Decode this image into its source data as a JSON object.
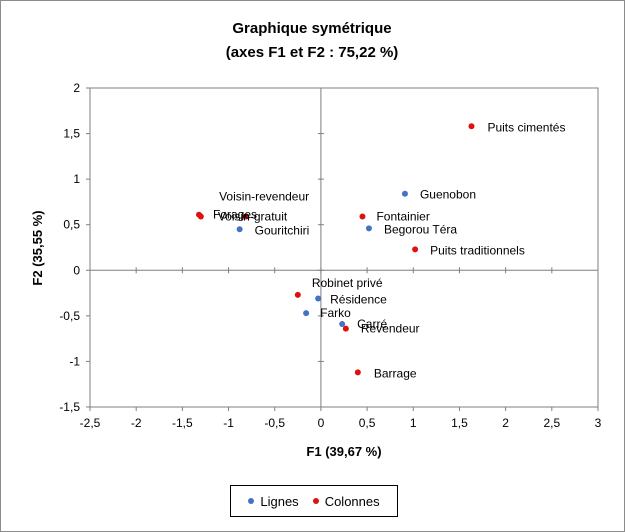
{
  "chart_data": {
    "type": "scatter",
    "title": "Graphique symétrique",
    "subtitle": "(axes F1 et F2 : 75,22 %)",
    "xlabel": "F1 (39,67 %)",
    "ylabel": "F2 (35,55 %)",
    "xlim": [
      -2.5,
      3
    ],
    "ylim": [
      -1.5,
      2
    ],
    "xticks": [
      -2.5,
      -2,
      -1.5,
      -1,
      -0.5,
      0,
      0.5,
      1,
      1.5,
      2,
      2.5,
      3
    ],
    "yticks": [
      -1.5,
      -1,
      -0.5,
      0,
      0.5,
      1,
      1.5,
      2
    ],
    "xtick_labels": [
      "-2,5",
      "-2",
      "-1,5",
      "-1",
      "-0,5",
      "0",
      "0,5",
      "1",
      "1,5",
      "2",
      "2,5",
      "3"
    ],
    "ytick_labels": [
      "-1,5",
      "-1",
      "-0,5",
      "0",
      "0,5",
      "1",
      "1,5",
      "2"
    ],
    "grid": false,
    "legend_position": "bottom",
    "series": [
      {
        "name": "Lignes",
        "color": "#4472c4",
        "points": [
          {
            "label": "Guenobon",
            "x": 0.91,
            "y": 0.84
          },
          {
            "label": "Begorou Téra",
            "x": 0.52,
            "y": 0.46
          },
          {
            "label": "Gouritchiri",
            "x": -0.88,
            "y": 0.45
          },
          {
            "label": "Résidence",
            "x": -0.03,
            "y": -0.31
          },
          {
            "label": "Farko",
            "x": -0.16,
            "y": -0.47
          },
          {
            "label": "Carré",
            "x": 0.23,
            "y": -0.59
          }
        ]
      },
      {
        "name": "Colonnes",
        "color": "#e01010",
        "points": [
          {
            "label": "Puits cimentés",
            "x": 1.63,
            "y": 1.58
          },
          {
            "label": "Voisin-revendeur",
            "x": -0.81,
            "y": 0.59
          },
          {
            "label": "Forages",
            "x": -1.32,
            "y": 0.61
          },
          {
            "label": "Voisin-gratuit",
            "x": -1.3,
            "y": 0.59
          },
          {
            "label": "Fontainier",
            "x": 0.45,
            "y": 0.59
          },
          {
            "label": "Puits traditionnels",
            "x": 1.02,
            "y": 0.23
          },
          {
            "label": "Robinet privé",
            "x": -0.25,
            "y": -0.27
          },
          {
            "label": "Revendeur",
            "x": 0.27,
            "y": -0.64
          },
          {
            "label": "Barrage",
            "x": 0.4,
            "y": -1.12
          }
        ]
      }
    ]
  }
}
